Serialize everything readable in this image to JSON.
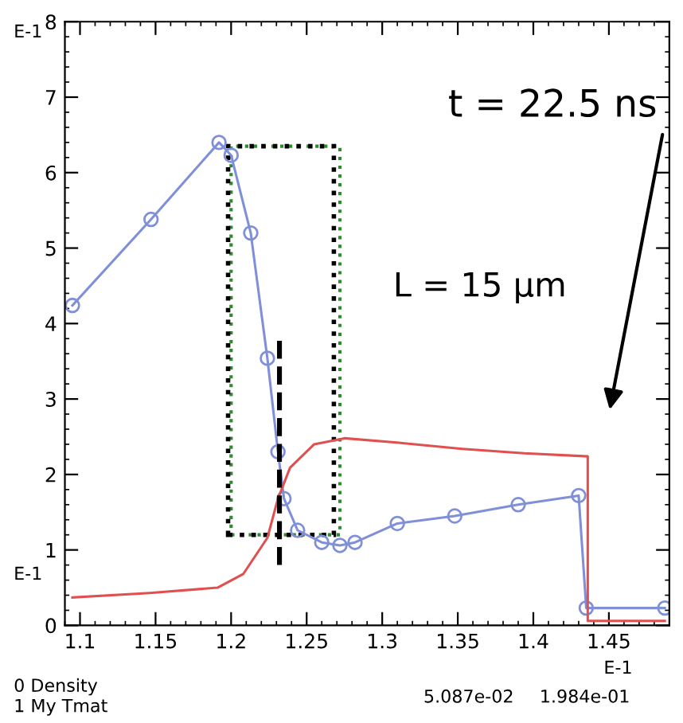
{
  "chart_data": {
    "type": "line",
    "xlim": [
      1.09,
      1.49
    ],
    "xticks": [
      1.1,
      1.15,
      1.2,
      1.25,
      1.3,
      1.35,
      1.4,
      1.45
    ],
    "ylim": [
      0,
      8
    ],
    "yticks": [
      0,
      1,
      2,
      3,
      4,
      5,
      6,
      7,
      8
    ],
    "grid": false,
    "line_style": "solid",
    "series": [
      {
        "color": "#7f8fd8",
        "marker": "circle",
        "x": [
          1.095,
          1.147,
          1.192,
          1.2,
          1.213,
          1.224,
          1.231,
          1.235,
          1.244,
          1.26,
          1.272,
          1.282,
          1.31,
          1.348,
          1.39,
          1.43,
          1.435,
          1.487
        ],
        "values": [
          4.24,
          5.38,
          6.4,
          6.23,
          5.2,
          3.54,
          2.3,
          1.68,
          1.26,
          1.1,
          1.06,
          1.1,
          1.35,
          1.45,
          1.6,
          1.72,
          0.23,
          0.23
        ]
      },
      {
        "color": "#e05050",
        "marker": "none",
        "x": [
          1.095,
          1.146,
          1.191,
          1.208,
          1.224,
          1.231,
          1.239,
          1.255,
          1.275,
          1.311,
          1.353,
          1.394,
          1.436,
          1.436,
          1.487
        ],
        "values": [
          0.37,
          0.43,
          0.5,
          0.68,
          1.16,
          1.68,
          2.09,
          2.4,
          2.48,
          2.42,
          2.34,
          2.28,
          2.24,
          0.06,
          0.06
        ]
      }
    ],
    "annotations": [
      "t = 22.5 ns",
      "L = 15 µm",
      "E-1",
      "E-1",
      "E-1",
      "0 Density",
      "1 My Tmat",
      "5.087e-02",
      "1.984e-01"
    ]
  }
}
